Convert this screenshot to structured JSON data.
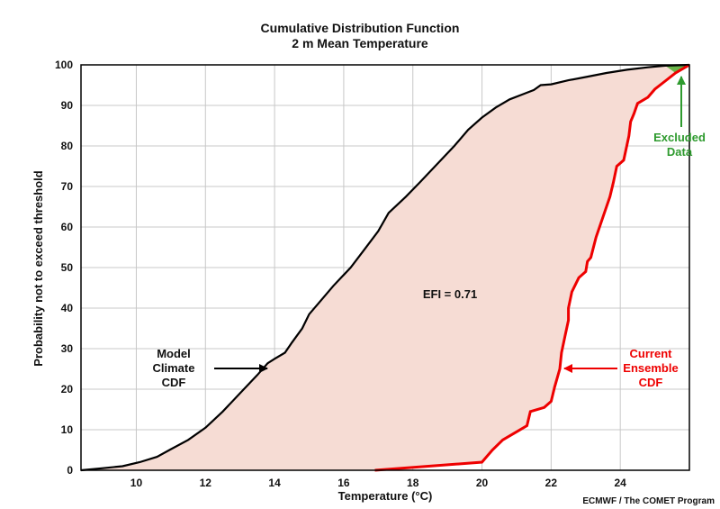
{
  "chart_data": {
    "type": "line",
    "title": "Cumulative Distribution Function",
    "subtitle": "2 m Mean Temperature",
    "xlabel": "Temperature (°C)",
    "ylabel": "Probability not to exceed threshold",
    "xlim": [
      8.4,
      26
    ],
    "ylim": [
      0,
      100
    ],
    "x_ticks": [
      10,
      12,
      14,
      16,
      18,
      20,
      22,
      24
    ],
    "y_ticks": [
      0,
      10,
      20,
      30,
      40,
      50,
      60,
      70,
      80,
      90,
      100
    ],
    "grid": true,
    "series": [
      {
        "name": "Model Climate CDF",
        "color": "#000000",
        "points": [
          [
            8.4,
            0
          ],
          [
            9.0,
            0.5
          ],
          [
            9.6,
            1.0
          ],
          [
            10.1,
            2.0
          ],
          [
            10.6,
            3.3
          ],
          [
            11.0,
            5.2
          ],
          [
            11.5,
            7.5
          ],
          [
            12.0,
            10.5
          ],
          [
            12.5,
            14.5
          ],
          [
            13.0,
            19.0
          ],
          [
            13.5,
            23.5
          ],
          [
            13.8,
            26.4
          ],
          [
            14.0,
            27.5
          ],
          [
            14.3,
            29.0
          ],
          [
            14.5,
            31.5
          ],
          [
            14.8,
            35.0
          ],
          [
            15.0,
            38.5
          ],
          [
            15.4,
            42.5
          ],
          [
            15.7,
            45.5
          ],
          [
            16.2,
            50.0
          ],
          [
            16.6,
            54.5
          ],
          [
            17.0,
            59.0
          ],
          [
            17.3,
            63.5
          ],
          [
            17.8,
            67.5
          ],
          [
            18.2,
            71.0
          ],
          [
            18.7,
            75.5
          ],
          [
            19.2,
            80.0
          ],
          [
            19.6,
            84.0
          ],
          [
            20.0,
            87.0
          ],
          [
            20.4,
            89.5
          ],
          [
            20.8,
            91.5
          ],
          [
            21.2,
            92.8
          ],
          [
            21.5,
            93.8
          ],
          [
            21.7,
            95.0
          ],
          [
            22.0,
            95.2
          ],
          [
            22.5,
            96.2
          ],
          [
            23.0,
            97.0
          ],
          [
            23.6,
            98.0
          ],
          [
            24.2,
            98.8
          ],
          [
            24.8,
            99.4
          ],
          [
            25.3,
            99.8
          ],
          [
            26,
            100
          ]
        ]
      },
      {
        "name": "Current Ensemble CDF",
        "color": "#ee0000",
        "points": [
          [
            16.9,
            0
          ],
          [
            20.0,
            2.0
          ],
          [
            20.3,
            5.0
          ],
          [
            20.6,
            7.5
          ],
          [
            21.0,
            9.5
          ],
          [
            21.3,
            11.0
          ],
          [
            21.4,
            14.5
          ],
          [
            21.8,
            15.5
          ],
          [
            22.0,
            17.0
          ],
          [
            22.1,
            20.5
          ],
          [
            22.25,
            25.0
          ],
          [
            22.3,
            29.0
          ],
          [
            22.4,
            33.0
          ],
          [
            22.5,
            37.0
          ],
          [
            22.5,
            40.0
          ],
          [
            22.6,
            44.0
          ],
          [
            22.8,
            47.5
          ],
          [
            23.0,
            49.0
          ],
          [
            23.05,
            51.5
          ],
          [
            23.15,
            52.5
          ],
          [
            23.3,
            57.5
          ],
          [
            23.5,
            62.5
          ],
          [
            23.7,
            67.5
          ],
          [
            23.8,
            71.0
          ],
          [
            23.9,
            75.0
          ],
          [
            24.1,
            76.5
          ],
          [
            24.25,
            82.5
          ],
          [
            24.3,
            86.0
          ],
          [
            24.4,
            88.0
          ],
          [
            24.5,
            90.5
          ],
          [
            24.8,
            92.0
          ],
          [
            25.0,
            94.0
          ],
          [
            25.3,
            96.0
          ],
          [
            25.6,
            98.0
          ],
          [
            26,
            100
          ]
        ]
      }
    ],
    "excluded_region": {
      "points": [
        [
          25.3,
          99.8
        ],
        [
          26,
          100
        ],
        [
          25.6,
          98.0
        ]
      ],
      "color": "#6ab54a"
    },
    "shaded_region_color": "#f6dcd4",
    "annotations": {
      "efi": "EFI = 0.71",
      "model_climate": [
        "Model",
        "Climate",
        "CDF"
      ],
      "current_ensemble": [
        "Current",
        "Ensemble",
        "CDF"
      ],
      "excluded": [
        "Excluded",
        "Data"
      ],
      "excluded_color": "#2e9a2e",
      "current_color": "#ee0000"
    },
    "credit": "ECMWF / The COMET Program"
  }
}
